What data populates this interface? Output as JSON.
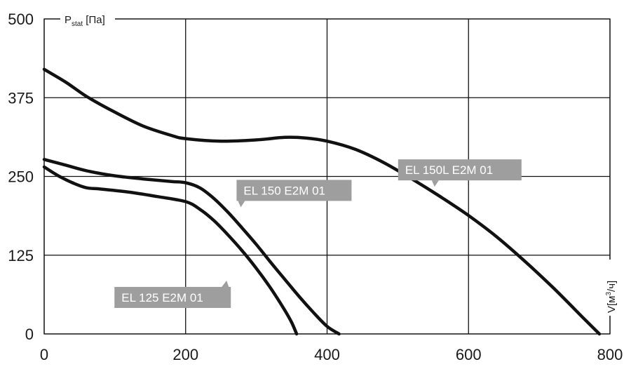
{
  "chart_data": {
    "type": "line",
    "title": "",
    "ylabel": {
      "main": "P",
      "sub": "stat",
      "unit": " [Па]"
    },
    "xlabel": {
      "main": "V",
      "unit": "[м",
      "sup": "3",
      "tail": "/ч]"
    },
    "xlim": [
      0,
      800
    ],
    "ylim": [
      0,
      500
    ],
    "x_ticks": [
      0,
      200,
      400,
      600,
      800
    ],
    "y_ticks": [
      0,
      125,
      250,
      375,
      500
    ],
    "x_grid": [
      0,
      200,
      400,
      600,
      800
    ],
    "y_grid": [
      0,
      125,
      250,
      375,
      500
    ],
    "grid": true,
    "label_color": "#9e9e9e",
    "series": [
      {
        "name": "EL 150L E2M 01",
        "label_at": {
          "x": 552,
          "y": 237
        },
        "points": [
          [
            0,
            420
          ],
          [
            30,
            400
          ],
          [
            60,
            377
          ],
          [
            100,
            352
          ],
          [
            140,
            330
          ],
          [
            180,
            315
          ],
          [
            200,
            310
          ],
          [
            250,
            306
          ],
          [
            300,
            308
          ],
          [
            340,
            312
          ],
          [
            370,
            311
          ],
          [
            400,
            306
          ],
          [
            440,
            293
          ],
          [
            480,
            272
          ],
          [
            520,
            246
          ],
          [
            560,
            218
          ],
          [
            600,
            188
          ],
          [
            640,
            154
          ],
          [
            680,
            115
          ],
          [
            720,
            73
          ],
          [
            760,
            28
          ],
          [
            785,
            0
          ]
        ]
      },
      {
        "name": "EL 150 E2M 01",
        "label_at": {
          "x": 278,
          "y": 200
        },
        "points": [
          [
            0,
            277
          ],
          [
            30,
            268
          ],
          [
            60,
            259
          ],
          [
            100,
            251
          ],
          [
            140,
            246
          ],
          [
            180,
            242
          ],
          [
            200,
            240
          ],
          [
            220,
            232
          ],
          [
            240,
            215
          ],
          [
            260,
            193
          ],
          [
            280,
            168
          ],
          [
            300,
            142
          ],
          [
            320,
            114
          ],
          [
            340,
            87
          ],
          [
            360,
            60
          ],
          [
            380,
            35
          ],
          [
            400,
            12
          ],
          [
            417,
            0
          ]
        ]
      },
      {
        "name": "EL 125 E2M 01",
        "label_at": {
          "x": 256,
          "y": 88
        },
        "points": [
          [
            0,
            265
          ],
          [
            20,
            251
          ],
          [
            40,
            240
          ],
          [
            60,
            232
          ],
          [
            80,
            230
          ],
          [
            120,
            225
          ],
          [
            160,
            218
          ],
          [
            200,
            210
          ],
          [
            220,
            198
          ],
          [
            240,
            180
          ],
          [
            260,
            157
          ],
          [
            280,
            132
          ],
          [
            300,
            104
          ],
          [
            320,
            73
          ],
          [
            340,
            38
          ],
          [
            350,
            18
          ],
          [
            357,
            0
          ]
        ]
      }
    ]
  }
}
